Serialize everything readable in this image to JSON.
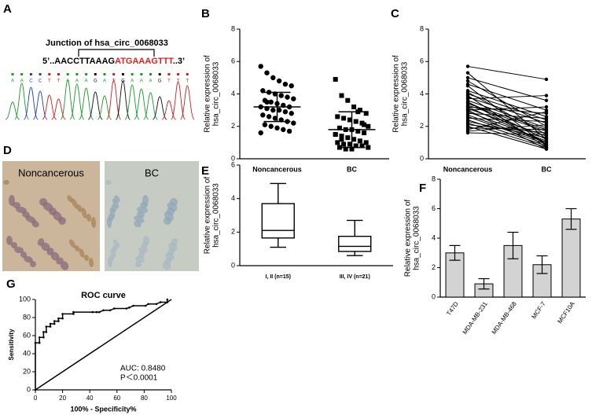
{
  "panel_labels": [
    "A",
    "B",
    "C",
    "D",
    "E",
    "F",
    "G"
  ],
  "sequence_panel": {
    "title": "Junction of  hsa_circ_0068033",
    "seq_prefix": "5’..AACCTTAAAG",
    "seq_junction": "ATGAAAGTTT",
    "seq_suffix": "..3’",
    "bases": [
      "A",
      "A",
      "C",
      "C",
      "T",
      "T",
      "A",
      "A",
      "A",
      "G",
      "A",
      "T",
      "G",
      "A",
      "A",
      "A",
      "G",
      "T",
      "T",
      "T"
    ]
  },
  "ihc_panel": {
    "labels": [
      "Noncancerous",
      "BC"
    ]
  },
  "chart_data": [
    {
      "type": "dot_plot",
      "y_label": [
        "Relative expression of",
        "hsa_circ_0068033"
      ],
      "categories": [
        "Noncancerous",
        "BC"
      ],
      "color": "#000000",
      "groups": [
        {
          "marker": "circle",
          "mean": 3.2,
          "sd": 0.9,
          "values": [
            5.7,
            5.3,
            5.0,
            4.8,
            4.6,
            4.5,
            4.2,
            4.1,
            4.0,
            3.9,
            3.8,
            3.7,
            3.6,
            3.5,
            3.4,
            3.3,
            3.2,
            3.2,
            3.1,
            3.0,
            3.0,
            2.9,
            2.8,
            2.7,
            2.6,
            2.5,
            2.4,
            2.3,
            2.2,
            2.1,
            2.0,
            1.9,
            1.8,
            1.7,
            1.6,
            3.5
          ]
        },
        {
          "marker": "square",
          "mean": 1.8,
          "sd": 1.1,
          "values": [
            4.9,
            3.9,
            3.6,
            3.2,
            3.0,
            2.8,
            2.6,
            2.5,
            2.4,
            2.3,
            2.2,
            2.0,
            1.9,
            1.8,
            1.8,
            1.7,
            1.6,
            1.5,
            1.4,
            1.3,
            1.2,
            1.1,
            1.0,
            1.0,
            0.9,
            0.9,
            0.8,
            0.8,
            0.7,
            0.7,
            0.6,
            0.6,
            2.9,
            2.1,
            1.5,
            1.2
          ]
        }
      ],
      "ylim": [
        0,
        8
      ],
      "yticks": [
        0,
        2,
        4,
        6,
        8
      ]
    },
    {
      "type": "paired_line",
      "y_label": [
        "Relative expression of",
        "hsa_circ_0068033"
      ],
      "categories": [
        "Noncancerous",
        "BC"
      ],
      "color": "#000000",
      "groups": [
        {
          "values": [
            5.7,
            5.3,
            5.0,
            4.8,
            4.6,
            4.5,
            4.2,
            4.1,
            4.0,
            3.9,
            3.8,
            3.7,
            3.6,
            3.5,
            3.4,
            3.3,
            3.2,
            3.2,
            3.1,
            3.0,
            3.0,
            2.9,
            2.8,
            2.7,
            2.6,
            2.5,
            2.4,
            2.3,
            2.2,
            2.1,
            2.0,
            1.9,
            1.8,
            1.7,
            1.6,
            3.5
          ]
        },
        {
          "values": [
            4.9,
            1.2,
            3.6,
            2.0,
            3.0,
            0.8,
            2.6,
            1.5,
            2.4,
            0.7,
            2.2,
            3.9,
            1.9,
            0.9,
            1.8,
            1.7,
            2.8,
            1.0,
            1.4,
            3.2,
            0.6,
            1.1,
            2.5,
            1.0,
            0.9,
            2.3,
            0.8,
            1.3,
            0.7,
            1.6,
            0.6,
            1.8,
            2.9,
            2.1,
            1.5,
            1.2
          ]
        }
      ],
      "ylim": [
        0,
        8
      ],
      "yticks": [
        0,
        2,
        4,
        6,
        8
      ]
    },
    {
      "type": "box",
      "y_label": [
        "Relative expression of",
        "hsa_circ_0068033"
      ],
      "categories": [
        "I, II (n=15)",
        "III, IV (n=21)"
      ],
      "boxes": [
        {
          "min": 1.1,
          "q1": 1.65,
          "median": 2.1,
          "q3": 3.7,
          "max": 4.9
        },
        {
          "min": 0.6,
          "q1": 0.85,
          "median": 1.15,
          "q3": 1.75,
          "max": 2.7
        }
      ],
      "ylim": [
        0,
        6
      ],
      "yticks": [
        0,
        2,
        4,
        6
      ]
    },
    {
      "type": "bar",
      "y_label": [
        "Relative expression of",
        "hsa_circ_0068033"
      ],
      "categories": [
        "T47D",
        "MDA-MB-231",
        "MDA-MB-468",
        "MCF-7",
        "MCF10A"
      ],
      "values": [
        3.0,
        0.9,
        3.5,
        2.2,
        5.3
      ],
      "errors": [
        0.5,
        0.35,
        0.9,
        0.6,
        0.7
      ],
      "color": "#d3d3d3",
      "ylim": [
        0,
        8
      ],
      "yticks": [
        0,
        2,
        4,
        6,
        8
      ]
    },
    {
      "type": "line",
      "title": "ROC curve",
      "x_label": "100% - Specificity%",
      "y_label": "Sensitivity",
      "reference_line": true,
      "x": [
        0,
        0,
        3,
        3,
        6,
        6,
        8,
        8,
        11,
        11,
        14,
        14,
        17,
        17,
        20,
        20,
        28,
        28,
        42,
        45,
        47,
        50,
        55,
        58,
        67,
        69,
        72,
        81,
        83,
        89,
        92,
        97,
        97
      ],
      "values": [
        0,
        52,
        52,
        58,
        58,
        64,
        64,
        70,
        70,
        73,
        73,
        76,
        76,
        79,
        79,
        84,
        84,
        86,
        86,
        86,
        86,
        88,
        88,
        90,
        90,
        91,
        93,
        93,
        95,
        95,
        97,
        97,
        100
      ],
      "xlim": [
        0,
        100
      ],
      "ylim": [
        0,
        100
      ],
      "xticks": [
        0,
        20,
        40,
        60,
        80,
        100
      ],
      "yticks": [
        0,
        20,
        40,
        60,
        80,
        100
      ],
      "annotations": [
        "AUC: 0.8480",
        "P＜0.0001"
      ]
    }
  ]
}
